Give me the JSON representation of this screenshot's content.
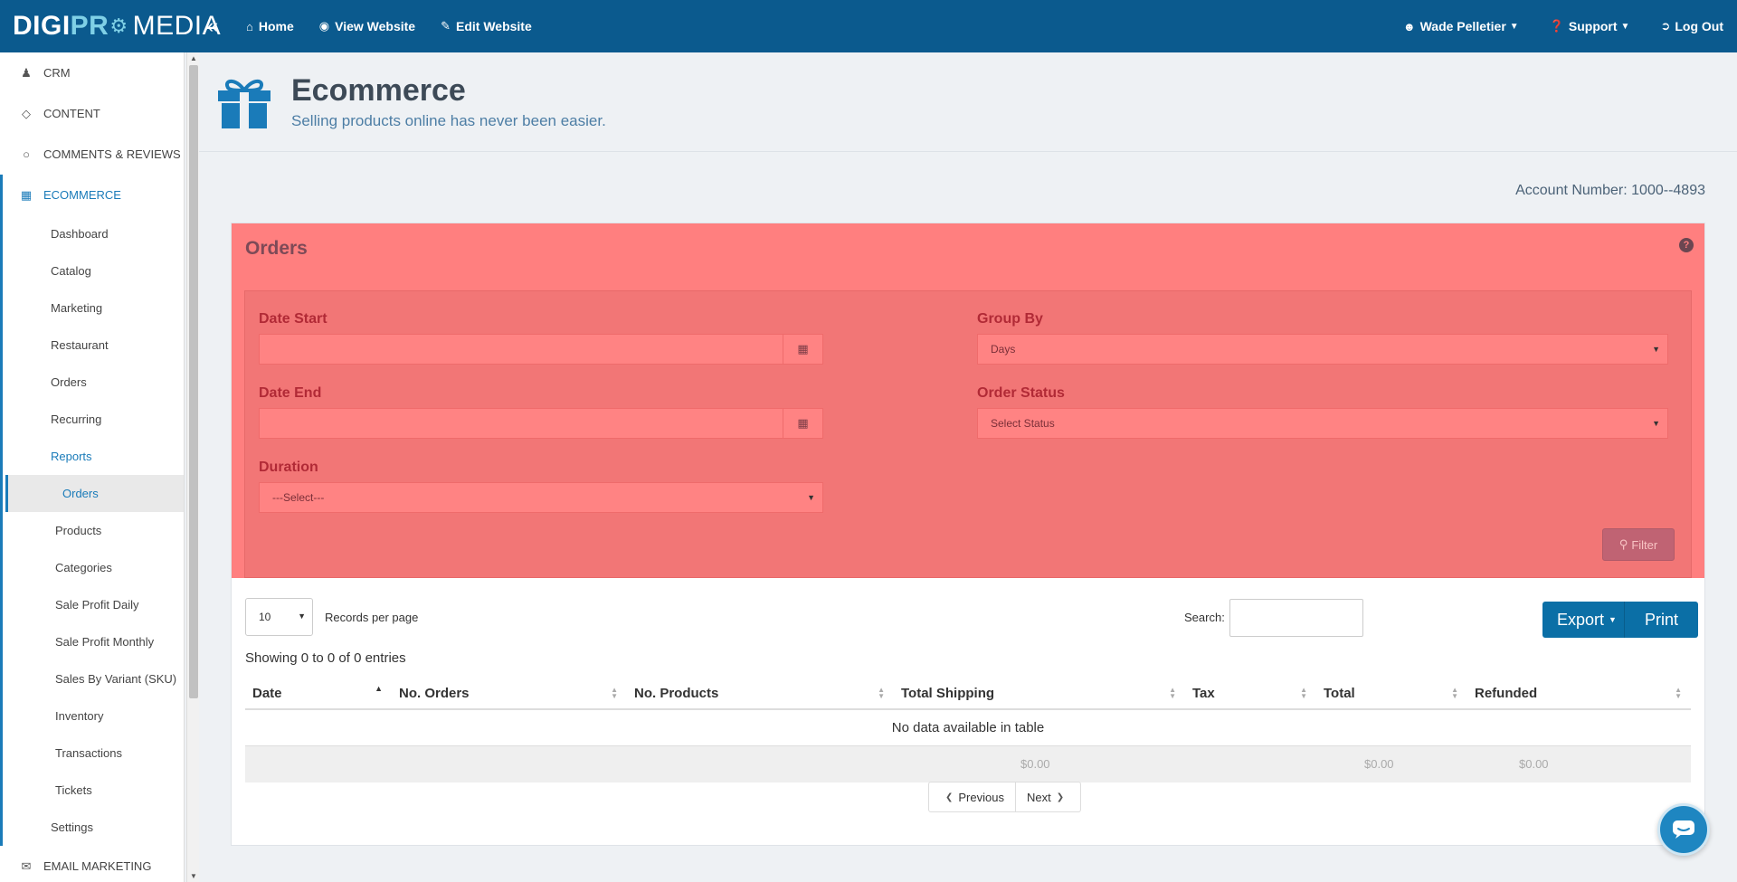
{
  "brand": {
    "part1": "DIGI",
    "part2": "PR",
    "part3": "MEDIA"
  },
  "topnav": [
    {
      "label": "Home",
      "icon": "home-icon"
    },
    {
      "label": "View Website",
      "icon": "eye-icon"
    },
    {
      "label": "Edit Website",
      "icon": "edit-icon"
    }
  ],
  "user": {
    "name": "Wade Pelletier",
    "support": "Support",
    "logout": "Log Out"
  },
  "sidebar": {
    "top_items": [
      "CRM",
      "CONTENT",
      "COMMENTS & REVIEWS"
    ],
    "active_section": "ECOMMERCE",
    "sub_items": [
      "Dashboard",
      "Catalog",
      "Marketing",
      "Restaurant",
      "Orders",
      "Recurring",
      "Reports"
    ],
    "report_items": [
      "Orders",
      "Products",
      "Categories",
      "Sale Profit Daily",
      "Sale Profit Monthly",
      "Sales By Variant (SKU)",
      "Inventory",
      "Transactions",
      "Tickets"
    ],
    "settings": "Settings",
    "bottom_item": "EMAIL MARKETING"
  },
  "page": {
    "title": "Ecommerce",
    "subtitle": "Selling products online has never been easier.",
    "account": "Account Number: 1000--4893"
  },
  "orders_panel": {
    "title": "Orders",
    "date_start_label": "Date Start",
    "date_end_label": "Date End",
    "duration_label": "Duration",
    "duration_value": "---Select---",
    "group_by_label": "Group By",
    "group_by_value": "Days",
    "order_status_label": "Order Status",
    "order_status_value": "Select Status",
    "filter_label": "Filter"
  },
  "table_controls": {
    "records_value": "10",
    "records_label": "Records per page",
    "search_label": "Search:",
    "export_label": "Export",
    "print_label": "Print",
    "showing": "Showing 0 to 0 of 0 entries"
  },
  "table": {
    "columns": [
      "Date",
      "No. Orders",
      "No. Products",
      "Total Shipping",
      "Tax",
      "Total",
      "Refunded"
    ],
    "empty_message": "No data available in table",
    "footer": {
      "total_shipping": "$0.00",
      "total": "$0.00",
      "refunded": "$0.00"
    }
  },
  "pager": {
    "prev": "Previous",
    "next": "Next"
  }
}
